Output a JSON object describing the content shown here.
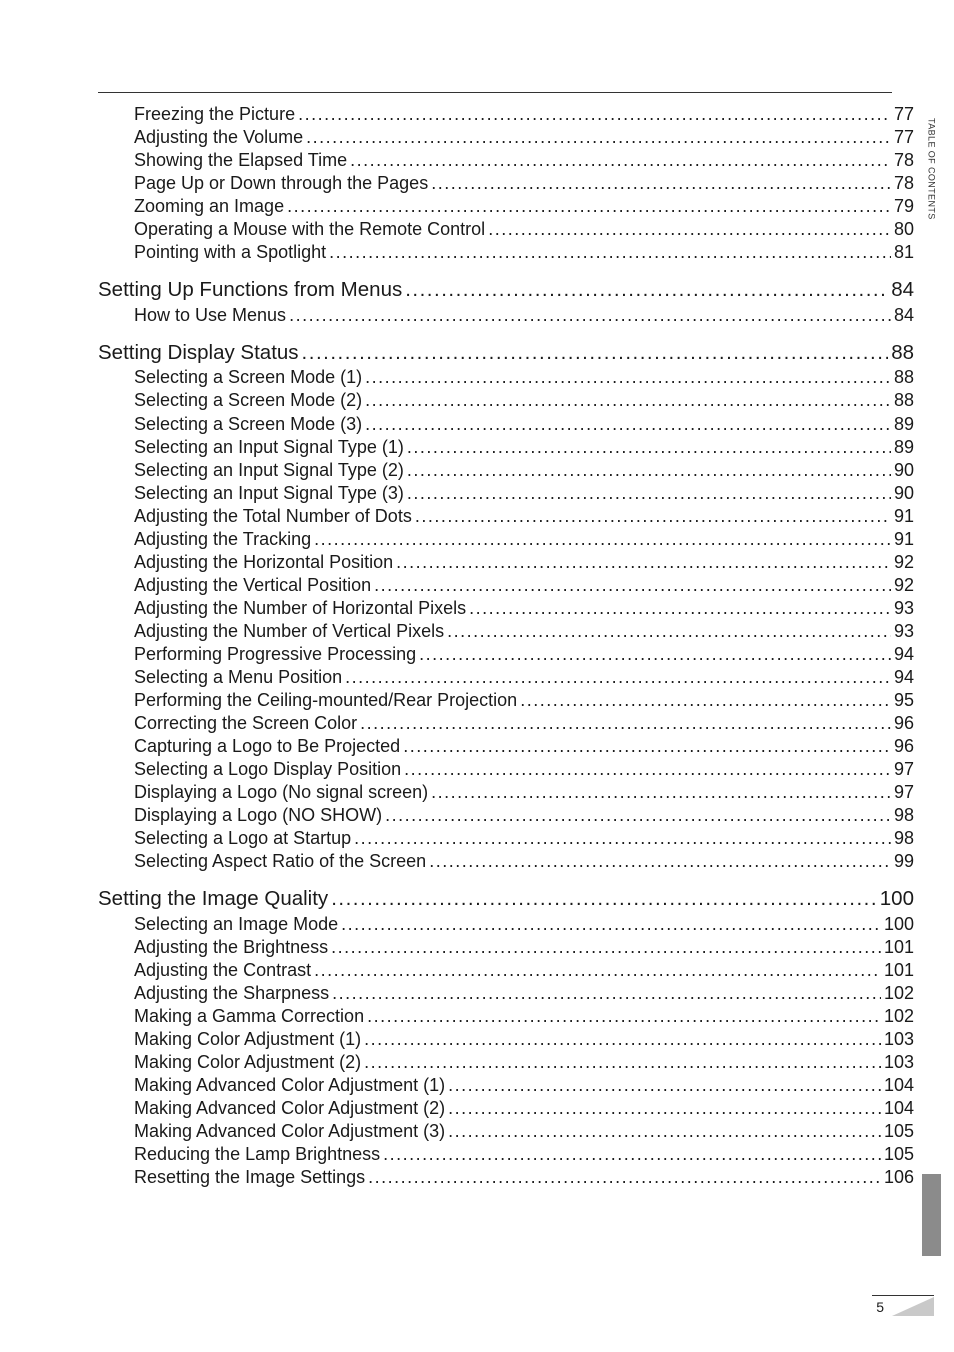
{
  "side_tab_label": "TABLE OF CONTENTS",
  "page_number": "5",
  "blocks": [
    {
      "section": null,
      "items": [
        {
          "label": "Freezing the Picture",
          "page": "77"
        },
        {
          "label": "Adjusting the Volume",
          "page": "77"
        },
        {
          "label": "Showing the Elapsed Time",
          "page": "78"
        },
        {
          "label": "Page Up or Down through the Pages",
          "page": "78"
        },
        {
          "label": "Zooming an Image",
          "page": "79"
        },
        {
          "label": "Operating a Mouse with the Remote Control",
          "page": "80"
        },
        {
          "label": "Pointing with a Spotlight",
          "page": "81"
        }
      ]
    },
    {
      "section": {
        "label": "Setting Up Functions from Menus",
        "page": "84"
      },
      "items": [
        {
          "label": "How to Use Menus",
          "page": "84"
        }
      ]
    },
    {
      "section": {
        "label": "Setting Display Status",
        "page": "88"
      },
      "items": [
        {
          "label": "Selecting a Screen Mode (1)",
          "page": "88"
        },
        {
          "label": "Selecting a Screen Mode (2)",
          "page": "88"
        },
        {
          "label": "Selecting a Screen Mode (3)",
          "page": "89"
        },
        {
          "label": "Selecting an Input Signal Type (1)",
          "page": "89"
        },
        {
          "label": "Selecting an Input Signal Type (2)",
          "page": "90"
        },
        {
          "label": "Selecting an Input Signal Type (3)",
          "page": "90"
        },
        {
          "label": "Adjusting the Total Number of Dots",
          "page": "91"
        },
        {
          "label": "Adjusting the Tracking",
          "page": "91"
        },
        {
          "label": "Adjusting the Horizontal Position",
          "page": "92"
        },
        {
          "label": "Adjusting the Vertical Position",
          "page": "92"
        },
        {
          "label": "Adjusting the Number of Horizontal Pixels",
          "page": "93"
        },
        {
          "label": "Adjusting the Number of Vertical Pixels",
          "page": "93"
        },
        {
          "label": "Performing Progressive Processing",
          "page": "94"
        },
        {
          "label": "Selecting a Menu Position",
          "page": "94"
        },
        {
          "label": "Performing the Ceiling-mounted/Rear Projection",
          "page": "95"
        },
        {
          "label": "Correcting the Screen Color",
          "page": "96"
        },
        {
          "label": "Capturing a Logo to Be Projected",
          "page": "96"
        },
        {
          "label": "Selecting a Logo Display Position",
          "page": "97"
        },
        {
          "label": "Displaying a Logo (No signal screen)",
          "page": "97"
        },
        {
          "label": "Displaying a Logo (NO SHOW)",
          "page": "98"
        },
        {
          "label": "Selecting a Logo at Startup",
          "page": "98"
        },
        {
          "label": "Selecting Aspect Ratio of the Screen",
          "page": "99"
        }
      ]
    },
    {
      "section": {
        "label": "Setting the Image Quality",
        "page": "100"
      },
      "items": [
        {
          "label": "Selecting an Image Mode",
          "page": "100"
        },
        {
          "label": "Adjusting the Brightness",
          "page": "101"
        },
        {
          "label": "Adjusting the Contrast",
          "page": "101"
        },
        {
          "label": "Adjusting the Sharpness",
          "page": "102"
        },
        {
          "label": "Making a Gamma Correction",
          "page": "102"
        },
        {
          "label": "Making Color Adjustment (1)",
          "page": "103"
        },
        {
          "label": "Making Color Adjustment (2)",
          "page": "103"
        },
        {
          "label": "Making Advanced Color Adjustment (1)",
          "page": "104"
        },
        {
          "label": "Making Advanced Color Adjustment (2)",
          "page": "104"
        },
        {
          "label": "Making Advanced Color Adjustment (3)",
          "page": "105"
        },
        {
          "label": "Reducing the Lamp Brightness",
          "page": "105"
        },
        {
          "label": "Resetting the Image Settings",
          "page": "106"
        }
      ]
    }
  ]
}
